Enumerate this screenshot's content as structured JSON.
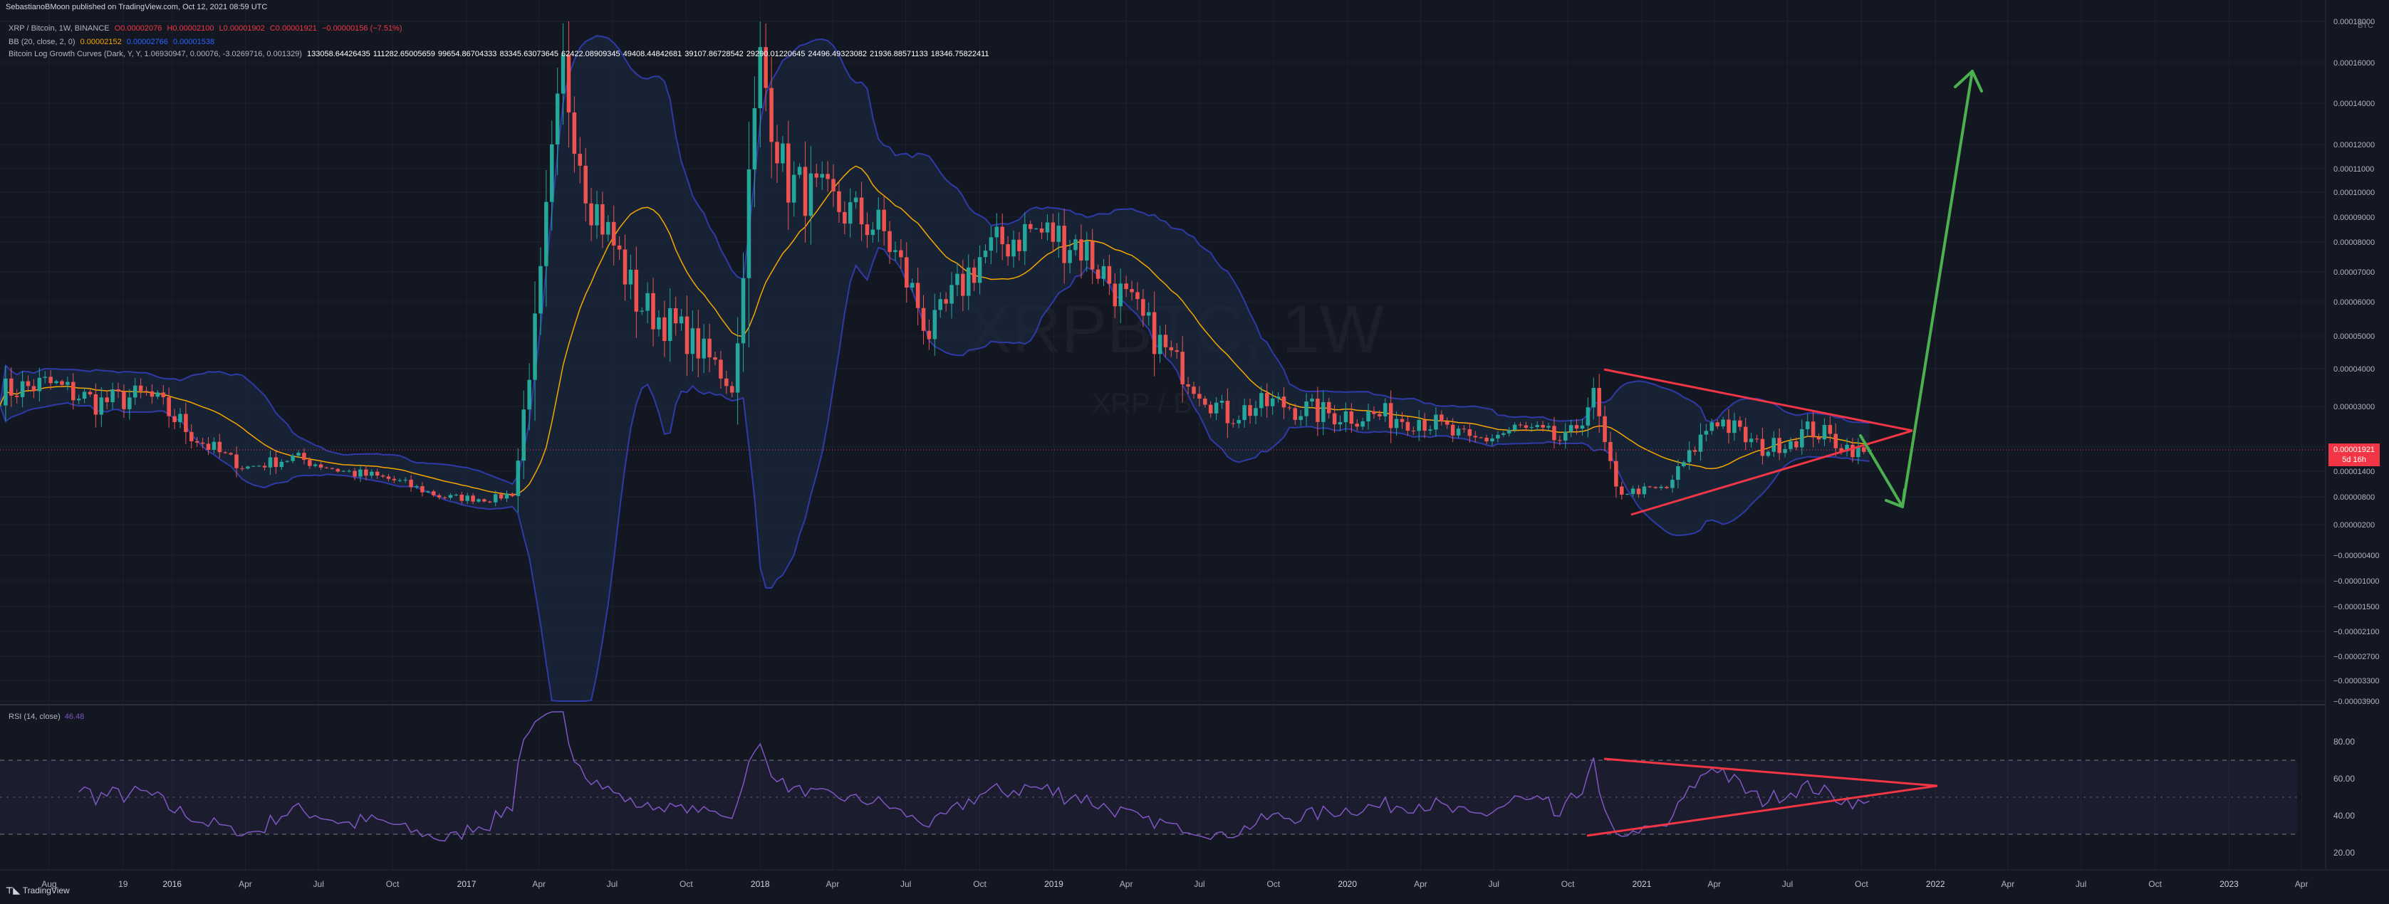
{
  "header": {
    "publisher": "SebastianoBMoon published on TradingView.com, Oct 12, 2021 08:59 UTC",
    "symbol": "XRP / Bitcoin, 1W, BINANCE",
    "ohlc": {
      "open": "O0.00002076",
      "high": "H0.00002100",
      "low": "L0.00001902",
      "close": "C0.00001921",
      "change": "−0.00000156 (−7.51%)"
    },
    "bb": {
      "label": "BB (20, close, 2, 0)",
      "basis": "0.00002152",
      "upper": "0.00002766",
      "lower": "0.00001538"
    },
    "curves": {
      "label": "Bitcoin Log Growth Curves (Dark, Y, Y, 1.06930947, 0.00076, -3.0269716, 0.001329)",
      "values": [
        "133058.64426435",
        "111282.65005659",
        "99654.86704333",
        "83345.63073645",
        "62422.08909345",
        "49408.44842681",
        "39107.86728542",
        "29290.01220645",
        "24496.49323082",
        "21936.88571133",
        "18346.75822411"
      ]
    },
    "currency": "BTC"
  },
  "watermark": {
    "symbol": "XRPBTC, 1W",
    "description": "XRP / Bitcoin"
  },
  "price_tag": {
    "price": "0.00001921",
    "countdown": "5d 16h"
  },
  "rsi": {
    "label": "RSI (14, close)",
    "value": "46.48"
  },
  "branding": {
    "logo": "TradingView"
  },
  "colors": {
    "background": "#131722",
    "up": "#26a69a",
    "down": "#ef5350",
    "bb_band": "#2f3aa8",
    "bb_basis": "#f7a600",
    "rsi": "#7e57c2",
    "triangle": "#f23645",
    "projection_arrow": "#4caf50"
  },
  "chart_data": {
    "type": "candlestick",
    "price_axis_ticks": [
      "0.00018000",
      "0.00016000",
      "0.00014000",
      "0.00012000",
      "0.00011000",
      "0.00010000",
      "0.00009000",
      "0.00008000",
      "0.00007000",
      "0.00006000",
      "0.00005000",
      "0.00004000",
      "0.00003000",
      "0.00002100",
      "0.00001400",
      "0.00000800",
      "0.00000200",
      "−0.00000400",
      "−0.00001000",
      "−0.00001500",
      "−0.00002100",
      "−0.00002700",
      "−0.00003300",
      "−0.00003900"
    ],
    "time_axis_ticks": [
      "Aug",
      "19",
      "2016",
      "Apr",
      "Jul",
      "Oct",
      "2017",
      "Apr",
      "Jul",
      "Oct",
      "2018",
      "Apr",
      "Jul",
      "Oct",
      "2019",
      "Apr",
      "Jul",
      "Oct",
      "2020",
      "Apr",
      "Jul",
      "Oct",
      "2021",
      "Apr",
      "Jul",
      "Oct",
      "2022",
      "Apr",
      "Jul",
      "Oct",
      "2023",
      "Apr"
    ],
    "rsi_axis_ticks": [
      "80.00",
      "60.00",
      "40.00",
      "20.00"
    ],
    "rsi_levels": [
      70,
      50,
      30
    ],
    "close_series": [
      {
        "date": "2015-06",
        "close": 3.4e-05
      },
      {
        "date": "2015-08",
        "close": 3.6e-05
      },
      {
        "date": "2015-10",
        "close": 3.1e-05
      },
      {
        "date": "2015-12",
        "close": 3.3e-05
      },
      {
        "date": "2016-02",
        "close": 2.3e-05
      },
      {
        "date": "2016-04",
        "close": 1.5e-05
      },
      {
        "date": "2016-06",
        "close": 1.8e-05
      },
      {
        "date": "2016-08",
        "close": 1.4e-05
      },
      {
        "date": "2016-10",
        "close": 1.2e-05
      },
      {
        "date": "2016-12",
        "close": 8e-06
      },
      {
        "date": "2017-02",
        "close": 7.5e-06
      },
      {
        "date": "2017-03",
        "close": 9e-06
      },
      {
        "date": "2017-04",
        "close": 6e-05
      },
      {
        "date": "2017-05",
        "close": 0.000155
      },
      {
        "date": "2017-06",
        "close": 0.0001
      },
      {
        "date": "2017-08",
        "close": 6e-05
      },
      {
        "date": "2017-10",
        "close": 5e-05
      },
      {
        "date": "2017-12",
        "close": 3.5e-05
      },
      {
        "date": "2018-01",
        "close": 0.00016
      },
      {
        "date": "2018-02",
        "close": 0.000105
      },
      {
        "date": "2018-04",
        "close": 9.5e-05
      },
      {
        "date": "2018-06",
        "close": 8.5e-05
      },
      {
        "date": "2018-08",
        "close": 5e-05
      },
      {
        "date": "2018-10",
        "close": 7.5e-05
      },
      {
        "date": "2018-12",
        "close": 8.5e-05
      },
      {
        "date": "2019-02",
        "close": 8e-05
      },
      {
        "date": "2019-04",
        "close": 6e-05
      },
      {
        "date": "2019-06",
        "close": 4.2e-05
      },
      {
        "date": "2019-08",
        "close": 2.8e-05
      },
      {
        "date": "2019-10",
        "close": 3.1e-05
      },
      {
        "date": "2019-12",
        "close": 2.85e-05
      },
      {
        "date": "2020-02",
        "close": 2.8e-05
      },
      {
        "date": "2020-04",
        "close": 2.75e-05
      },
      {
        "date": "2020-06",
        "close": 2.2e-05
      },
      {
        "date": "2020-08",
        "close": 2.5e-05
      },
      {
        "date": "2020-10",
        "close": 2.2e-05
      },
      {
        "date": "2020-11",
        "close": 3.3e-05
      },
      {
        "date": "2020-12",
        "close": 9e-06
      },
      {
        "date": "2021-02",
        "close": 1e-05
      },
      {
        "date": "2021-04",
        "close": 2.8e-05
      },
      {
        "date": "2021-06",
        "close": 2e-05
      },
      {
        "date": "2021-08",
        "close": 2.5e-05
      },
      {
        "date": "2021-10",
        "close": 1.92e-05
      }
    ]
  }
}
